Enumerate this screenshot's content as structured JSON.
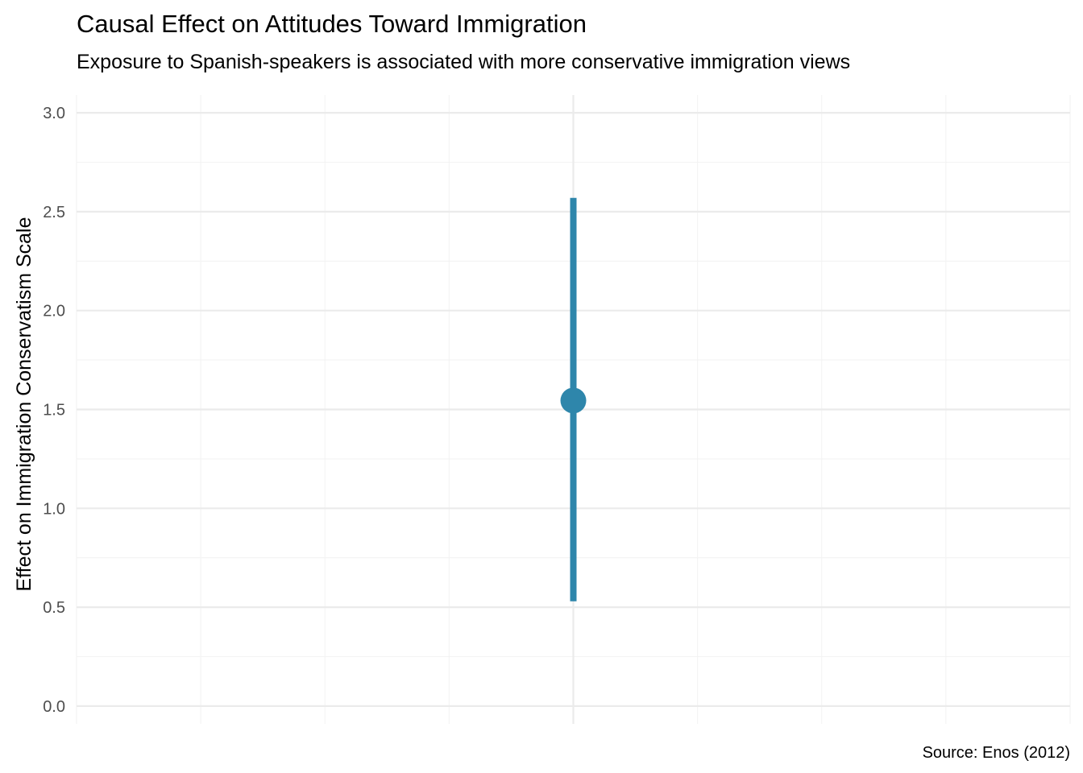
{
  "chart_data": {
    "type": "scatter",
    "title": "Causal Effect on Attitudes Toward Immigration",
    "subtitle": "Exposure to Spanish-speakers is associated with more conservative immigration views",
    "ylabel": "Effect on Immigration Conservatism Scale",
    "xlabel": "",
    "caption": "Source: Enos (2012)",
    "ylim": [
      -0.09,
      3.09
    ],
    "y_ticks": [
      0.0,
      0.5,
      1.0,
      1.5,
      2.0,
      2.5,
      3.0
    ],
    "y_tick_labels": [
      "0.0",
      "0.5",
      "1.0",
      "1.5",
      "2.0",
      "2.5",
      "3.0"
    ],
    "x_tick_labels": [],
    "grid": true,
    "legend": "none",
    "points": [
      {
        "estimate": 1.545,
        "ci_low": 0.53,
        "ci_high": 2.57
      }
    ],
    "colors": {
      "point": "#2E86AB",
      "grid_major": "#EBEBEB",
      "grid_minor": "#F3F3F3",
      "tick_label": "#4D4D4D",
      "text": "#000000"
    }
  }
}
